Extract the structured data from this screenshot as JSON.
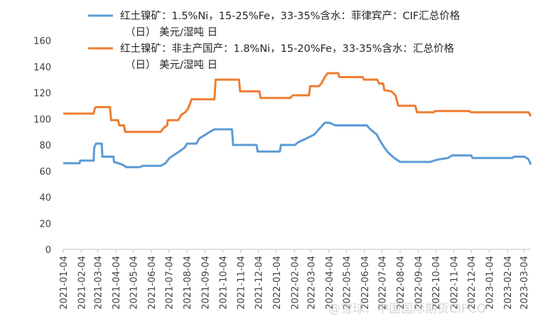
{
  "chart_data": {
    "type": "line",
    "title": "",
    "xlabel": "",
    "ylabel": "",
    "ylim": [
      0,
      160
    ],
    "yticks": [
      0,
      20,
      40,
      60,
      80,
      100,
      120,
      140,
      160
    ],
    "x_tick_labels": [
      "2021-01-04",
      "2021-02-04",
      "2021-03-04",
      "2021-04-04",
      "2021-05-04",
      "2021-06-04",
      "2021-07-04",
      "2021-08-04",
      "2021-09-04",
      "2021-10-04",
      "2021-11-04",
      "2021-12-04",
      "2022-01-04",
      "2022-02-04",
      "2022-03-04",
      "2022-04-04",
      "2022-05-04",
      "2022-06-04",
      "2022-07-04",
      "2022-08-04",
      "2022-09-04",
      "2022-10-04",
      "2022-11-04",
      "2022-12-04",
      "2023-01-04",
      "2023-02-04",
      "2023-03-04"
    ],
    "grid": false,
    "legend_position": "top",
    "series": [
      {
        "name_lines": [
          "红土镍矿：1.5%Ni，15-25%Fe，33-35%含水：菲律宾产：CIF汇总价格",
          "（日） 美元/湿吨 日"
        ],
        "color": "#5B9BD5",
        "points": [
          [
            "2021-01-04",
            66
          ],
          [
            "2021-02-01",
            66
          ],
          [
            "2021-02-02",
            68
          ],
          [
            "2021-02-25",
            68
          ],
          [
            "2021-02-26",
            78
          ],
          [
            "2021-03-01",
            81
          ],
          [
            "2021-03-11",
            81
          ],
          [
            "2021-03-12",
            71
          ],
          [
            "2021-03-31",
            71
          ],
          [
            "2021-04-01",
            67
          ],
          [
            "2021-04-15",
            65
          ],
          [
            "2021-04-22",
            63
          ],
          [
            "2021-05-15",
            63
          ],
          [
            "2021-05-20",
            64
          ],
          [
            "2021-06-20",
            64
          ],
          [
            "2021-06-28",
            66
          ],
          [
            "2021-07-05",
            70
          ],
          [
            "2021-07-15",
            73
          ],
          [
            "2021-07-25",
            76
          ],
          [
            "2021-07-31",
            78
          ],
          [
            "2021-08-04",
            81
          ],
          [
            "2021-08-20",
            81
          ],
          [
            "2021-08-25",
            85
          ],
          [
            "2021-09-05",
            88
          ],
          [
            "2021-09-12",
            90
          ],
          [
            "2021-09-20",
            92
          ],
          [
            "2021-10-20",
            92
          ],
          [
            "2021-10-22",
            80
          ],
          [
            "2021-12-01",
            80
          ],
          [
            "2021-12-03",
            75
          ],
          [
            "2022-01-10",
            75
          ],
          [
            "2022-01-12",
            80
          ],
          [
            "2022-02-05",
            80
          ],
          [
            "2022-02-10",
            82
          ],
          [
            "2022-02-20",
            84
          ],
          [
            "2022-03-01",
            86
          ],
          [
            "2022-03-10",
            88
          ],
          [
            "2022-03-20",
            93
          ],
          [
            "2022-03-28",
            97
          ],
          [
            "2022-04-05",
            97
          ],
          [
            "2022-04-15",
            95
          ],
          [
            "2022-05-01",
            95
          ],
          [
            "2022-06-08",
            95
          ],
          [
            "2022-06-14",
            92
          ],
          [
            "2022-06-25",
            88
          ],
          [
            "2022-07-01",
            83
          ],
          [
            "2022-07-08",
            78
          ],
          [
            "2022-07-15",
            74
          ],
          [
            "2022-07-25",
            70
          ],
          [
            "2022-08-04",
            67
          ],
          [
            "2022-09-25",
            67
          ],
          [
            "2022-10-01",
            68
          ],
          [
            "2022-10-10",
            69
          ],
          [
            "2022-10-25",
            70
          ],
          [
            "2022-11-01",
            72
          ],
          [
            "2022-12-04",
            72
          ],
          [
            "2022-12-06",
            70
          ],
          [
            "2023-02-12",
            70
          ],
          [
            "2023-02-15",
            71
          ],
          [
            "2023-03-05",
            71
          ],
          [
            "2023-03-12",
            69
          ],
          [
            "2023-03-16",
            65
          ]
        ]
      },
      {
        "name_lines": [
          "红土镍矿：非主产国产：1.8%Ni，15-20%Fe，33-35%含水：汇总价格",
          "（日） 美元/湿吨 日"
        ],
        "color": "#ED7D31",
        "points": [
          [
            "2021-01-04",
            104
          ],
          [
            "2021-02-25",
            104
          ],
          [
            "2021-02-27",
            108
          ],
          [
            "2021-03-01",
            109
          ],
          [
            "2021-03-25",
            109
          ],
          [
            "2021-03-27",
            99
          ],
          [
            "2021-04-08",
            99
          ],
          [
            "2021-04-10",
            95
          ],
          [
            "2021-04-18",
            95
          ],
          [
            "2021-04-20",
            90
          ],
          [
            "2021-06-20",
            90
          ],
          [
            "2021-06-25",
            93
          ],
          [
            "2021-07-01",
            95
          ],
          [
            "2021-07-02",
            99
          ],
          [
            "2021-07-20",
            99
          ],
          [
            "2021-07-25",
            103
          ],
          [
            "2021-08-01",
            105
          ],
          [
            "2021-08-06",
            108
          ],
          [
            "2021-08-12",
            115
          ],
          [
            "2021-09-20",
            115
          ],
          [
            "2021-09-22",
            130
          ],
          [
            "2021-11-01",
            130
          ],
          [
            "2021-11-03",
            121
          ],
          [
            "2021-12-06",
            121
          ],
          [
            "2021-12-08",
            116
          ],
          [
            "2022-01-28",
            116
          ],
          [
            "2022-02-01",
            118
          ],
          [
            "2022-03-01",
            118
          ],
          [
            "2022-03-03",
            125
          ],
          [
            "2022-03-18",
            125
          ],
          [
            "2022-03-22",
            127
          ],
          [
            "2022-03-28",
            132
          ],
          [
            "2022-04-02",
            135
          ],
          [
            "2022-04-20",
            135
          ],
          [
            "2022-04-22",
            132
          ],
          [
            "2022-06-01",
            132
          ],
          [
            "2022-06-03",
            130
          ],
          [
            "2022-06-26",
            130
          ],
          [
            "2022-06-29",
            127
          ],
          [
            "2022-07-06",
            127
          ],
          [
            "2022-07-08",
            122
          ],
          [
            "2022-07-20",
            121
          ],
          [
            "2022-07-27",
            118
          ],
          [
            "2022-08-01",
            110
          ],
          [
            "2022-08-30",
            110
          ],
          [
            "2022-09-02",
            105
          ],
          [
            "2022-10-01",
            105
          ],
          [
            "2022-10-03",
            106
          ],
          [
            "2022-12-01",
            106
          ],
          [
            "2022-12-03",
            105
          ],
          [
            "2023-03-12",
            105
          ],
          [
            "2023-03-16",
            102
          ]
        ]
      }
    ]
  },
  "watermark_text": "@雪球：中国国际期货CIFCO"
}
